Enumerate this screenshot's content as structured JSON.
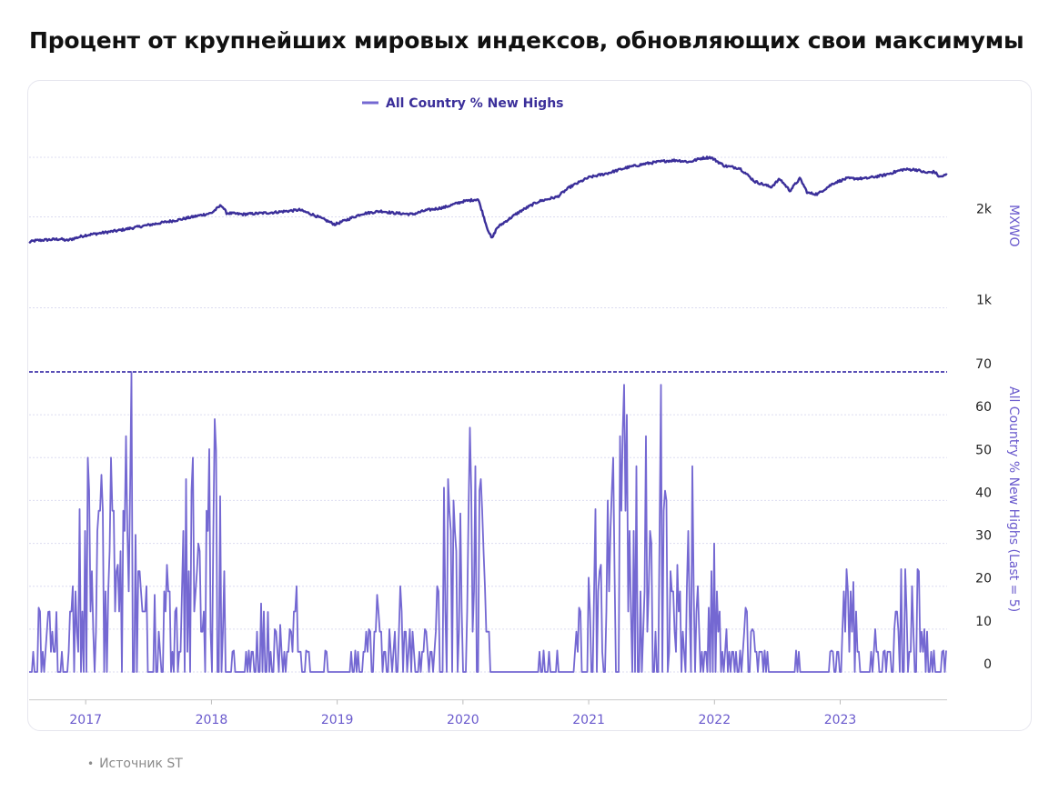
{
  "title": "Процент от крупнейших мировых индексов, обновляющих свои максимумы",
  "source": "Источник ST",
  "source_bullet": "•",
  "colors": {
    "top_line": "#3b2f9a",
    "bottom_line": "#7468d2",
    "axis_text": "#6a5acd",
    "grid": "#dcdcf0",
    "threshold": "#5a4fb6"
  },
  "chart_data": [
    {
      "type": "line",
      "legend": "All Country % New Highs",
      "legend_position": "top-center",
      "ylabel": "MXWO",
      "yscale": "log",
      "yticks": [
        "1k",
        "2k"
      ],
      "ytick_values": [
        1000,
        2000
      ],
      "ylim": [
        850,
        3150
      ],
      "grid": true,
      "x_start": 2016.55,
      "x_end": 2023.85,
      "series": [
        {
          "anchors": [
            [
              2016.55,
              1650
            ],
            [
              2016.6,
              1670
            ],
            [
              2016.8,
              1690
            ],
            [
              2016.85,
              1670
            ],
            [
              2017.0,
              1740
            ],
            [
              2017.25,
              1800
            ],
            [
              2017.5,
              1880
            ],
            [
              2017.75,
              1960
            ],
            [
              2018.0,
              2060
            ],
            [
              2018.08,
              2190
            ],
            [
              2018.12,
              2060
            ],
            [
              2018.25,
              2040
            ],
            [
              2018.5,
              2070
            ],
            [
              2018.7,
              2110
            ],
            [
              2018.8,
              2040
            ],
            [
              2018.98,
              1890
            ],
            [
              2019.0,
              1900
            ],
            [
              2019.2,
              2050
            ],
            [
              2019.35,
              2090
            ],
            [
              2019.45,
              2060
            ],
            [
              2019.6,
              2040
            ],
            [
              2019.7,
              2100
            ],
            [
              2019.85,
              2150
            ],
            [
              2020.0,
              2250
            ],
            [
              2020.12,
              2290
            ],
            [
              2020.19,
              1850
            ],
            [
              2020.23,
              1690
            ],
            [
              2020.27,
              1840
            ],
            [
              2020.45,
              2080
            ],
            [
              2020.6,
              2250
            ],
            [
              2020.75,
              2330
            ],
            [
              2020.85,
              2510
            ],
            [
              2021.0,
              2700
            ],
            [
              2021.15,
              2790
            ],
            [
              2021.3,
              2910
            ],
            [
              2021.45,
              3000
            ],
            [
              2021.6,
              3060
            ],
            [
              2021.7,
              3080
            ],
            [
              2021.8,
              3040
            ],
            [
              2021.9,
              3130
            ],
            [
              2021.97,
              3150
            ],
            [
              2022.08,
              2950
            ],
            [
              2022.2,
              2900
            ],
            [
              2022.32,
              2620
            ],
            [
              2022.45,
              2510
            ],
            [
              2022.52,
              2670
            ],
            [
              2022.6,
              2440
            ],
            [
              2022.68,
              2680
            ],
            [
              2022.74,
              2400
            ],
            [
              2022.82,
              2380
            ],
            [
              2022.95,
              2590
            ],
            [
              2023.05,
              2680
            ],
            [
              2023.2,
              2680
            ],
            [
              2023.35,
              2750
            ],
            [
              2023.5,
              2870
            ],
            [
              2023.6,
              2870
            ],
            [
              2023.68,
              2800
            ],
            [
              2023.75,
              2820
            ],
            [
              2023.79,
              2710
            ],
            [
              2023.85,
              2760
            ]
          ]
        }
      ]
    },
    {
      "type": "line",
      "ylabel": "All Country % New Highs (Last = 5)",
      "yticks": [
        0,
        10,
        20,
        30,
        40,
        50,
        60,
        70
      ],
      "ylim": [
        -6.5,
        72
      ],
      "grid": true,
      "threshold": 70,
      "xticks": [
        "2017",
        "2018",
        "2019",
        "2020",
        "2021",
        "2022",
        "2023"
      ],
      "xtick_values": [
        2017,
        2018,
        2019,
        2020,
        2021,
        2022,
        2023
      ],
      "xlim": [
        2016.55,
        2023.85
      ],
      "series": [
        {
          "name": "All Country % New Highs",
          "last": 5,
          "peaks": [
            [
              2016.63,
              15
            ],
            [
              2016.7,
              14
            ],
            [
              2016.77,
              14
            ],
            [
              2016.9,
              20
            ],
            [
              2016.95,
              38
            ],
            [
              2017.02,
              50
            ],
            [
              2017.12,
              46
            ],
            [
              2017.2,
              50
            ],
            [
              2017.25,
              25
            ],
            [
              2017.32,
              55
            ],
            [
              2017.36,
              70
            ],
            [
              2017.4,
              32
            ],
            [
              2017.48,
              20
            ],
            [
              2017.55,
              18
            ],
            [
              2017.65,
              25
            ],
            [
              2017.72,
              15
            ],
            [
              2017.8,
              45
            ],
            [
              2017.85,
              50
            ],
            [
              2017.9,
              30
            ],
            [
              2017.98,
              52
            ],
            [
              2018.03,
              59
            ],
            [
              2018.07,
              41
            ],
            [
              2018.18,
              5
            ],
            [
              2018.3,
              5
            ],
            [
              2018.4,
              16
            ],
            [
              2018.45,
              14
            ],
            [
              2018.5,
              10
            ],
            [
              2018.55,
              11
            ],
            [
              2018.62,
              10
            ],
            [
              2018.68,
              20
            ],
            [
              2018.75,
              5
            ],
            [
              2018.9,
              5
            ],
            [
              2019.14,
              5
            ],
            [
              2019.25,
              10
            ],
            [
              2019.32,
              18
            ],
            [
              2019.42,
              10
            ],
            [
              2019.5,
              20
            ],
            [
              2019.58,
              10
            ],
            [
              2019.7,
              10
            ],
            [
              2019.8,
              20
            ],
            [
              2019.85,
              43
            ],
            [
              2019.88,
              45
            ],
            [
              2019.92,
              40
            ],
            [
              2019.98,
              37
            ],
            [
              2020.05,
              57
            ],
            [
              2020.1,
              48
            ],
            [
              2020.14,
              45
            ],
            [
              2020.17,
              20
            ],
            [
              2020.64,
              5
            ],
            [
              2020.75,
              5
            ],
            [
              2020.92,
              15
            ],
            [
              2021.0,
              22
            ],
            [
              2021.05,
              38
            ],
            [
              2021.1,
              25
            ],
            [
              2021.15,
              40
            ],
            [
              2021.2,
              50
            ],
            [
              2021.25,
              55
            ],
            [
              2021.28,
              67
            ],
            [
              2021.3,
              60
            ],
            [
              2021.38,
              48
            ],
            [
              2021.45,
              55
            ],
            [
              2021.5,
              30
            ],
            [
              2021.58,
              67
            ],
            [
              2021.62,
              40
            ],
            [
              2021.7,
              25
            ],
            [
              2021.78,
              20
            ],
            [
              2021.82,
              48
            ],
            [
              2021.87,
              20
            ],
            [
              2021.95,
              15
            ],
            [
              2022.0,
              30
            ],
            [
              2022.1,
              10
            ],
            [
              2022.2,
              5
            ],
            [
              2022.25,
              15
            ],
            [
              2022.3,
              10
            ],
            [
              2022.4,
              5
            ],
            [
              2022.65,
              5
            ],
            [
              2022.93,
              5
            ],
            [
              2023.02,
              10
            ],
            [
              2023.05,
              24
            ],
            [
              2023.1,
              21
            ],
            [
              2023.28,
              10
            ],
            [
              2023.35,
              5
            ],
            [
              2023.43,
              10
            ],
            [
              2023.48,
              24
            ],
            [
              2023.52,
              24
            ],
            [
              2023.57,
              20
            ],
            [
              2023.62,
              24
            ],
            [
              2023.67,
              10
            ],
            [
              2023.75,
              5
            ],
            [
              2023.82,
              5
            ]
          ]
        }
      ]
    }
  ]
}
